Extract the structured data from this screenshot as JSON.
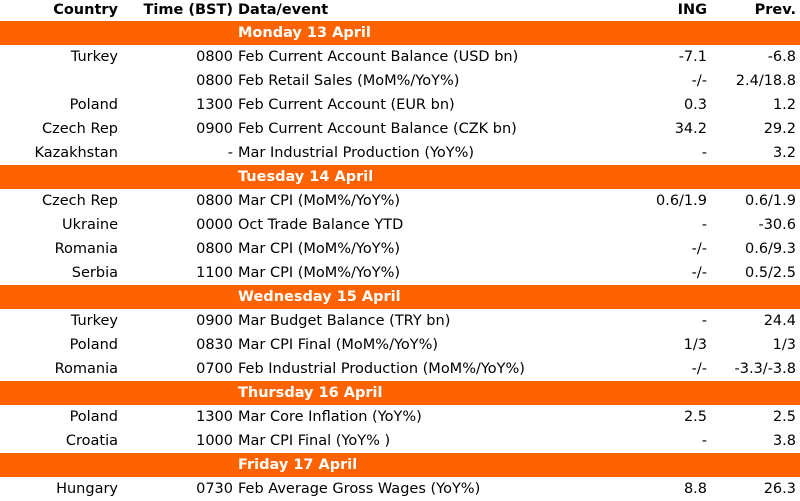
{
  "header": [
    "Country",
    "Time (BST)",
    "Data/event",
    "ING",
    "Prev."
  ],
  "sections": [
    {
      "day": "Monday 13 April",
      "rows": [
        [
          "Turkey",
          "0800",
          "Feb Current Account Balance (USD bn)",
          "-7.1",
          "-6.8"
        ],
        [
          null,
          "0800",
          "Feb Retail Sales (MoM%/YoY%)",
          "-/-",
          "2.4/18.8"
        ],
        [
          "Poland",
          "1300",
          "Feb Current Account (EUR bn)",
          "0.3",
          "1.2"
        ],
        [
          "Czech Rep",
          "0900",
          "Feb Current Account Balance (CZK bn)",
          "34.2",
          "29.2"
        ],
        [
          "Kazakhstan",
          "-",
          "Mar Industrial Production (YoY%)",
          "-",
          "3.2"
        ]
      ]
    },
    {
      "day": "Tuesday 14 April",
      "rows": [
        [
          "Czech Rep",
          "0800",
          "Mar CPI (MoM%/YoY%)",
          "0.6/1.9",
          "0.6/1.9"
        ],
        [
          "Ukraine",
          "0000",
          "Oct Trade Balance YTD",
          "-",
          "-30.6"
        ],
        [
          "Romania",
          "0800",
          "Mar CPI (MoM%/YoY%)",
          "-/-",
          "0.6/9.3"
        ],
        [
          "Serbia",
          "1100",
          "Mar CPI (MoM%/YoY%)",
          "-/-",
          "0.5/2.5"
        ]
      ]
    },
    {
      "day": "Wednesday 15 April",
      "rows": [
        [
          "Turkey",
          "0900",
          "Mar Budget Balance (TRY bn)",
          "-",
          "24.4"
        ],
        [
          "Poland",
          "0830",
          "Mar CPI Final (MoM%/YoY%)",
          "1/3",
          "1/3"
        ],
        [
          "Romania",
          "0700",
          "Feb Industrial Production (MoM%/YoY%)",
          "-/-",
          "-3.3/-3.8"
        ]
      ]
    },
    {
      "day": "Thursday 16 April",
      "rows": [
        [
          "Poland",
          "1300",
          "Mar Core Inflation (YoY%)",
          "2.5",
          "2.5"
        ],
        [
          "Croatia",
          "1000",
          "Mar CPI Final (YoY% )",
          "-",
          "3.8"
        ]
      ]
    },
    {
      "day": "Friday 17 April",
      "rows": [
        [
          "Hungary",
          "0730",
          "Feb Average Gross Wages (YoY%)",
          "8.8",
          "26.3"
        ]
      ]
    }
  ]
}
